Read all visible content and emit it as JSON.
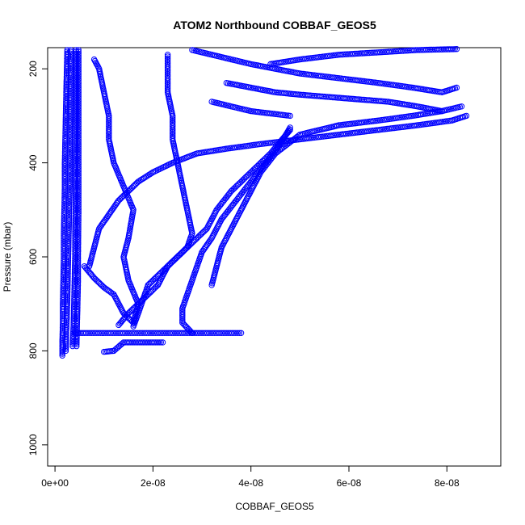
{
  "chart_data": {
    "type": "scatter",
    "title": "ATOM2 Northbound COBBAF_GEOS5",
    "xlabel": "COBBAF_GEOS5",
    "ylabel": "Pressure (mbar)",
    "xlim": [
      -1.5e-09,
      9.1e-08
    ],
    "ylim": [
      1045,
      155
    ],
    "y_reversed": true,
    "x_ticks": [
      {
        "value": 0,
        "label": "0e+00"
      },
      {
        "value": 2e-08,
        "label": "2e-08"
      },
      {
        "value": 4e-08,
        "label": "4e-08"
      },
      {
        "value": 6e-08,
        "label": "6e-08"
      },
      {
        "value": 8e-08,
        "label": "8e-08"
      }
    ],
    "y_ticks": [
      {
        "value": 200,
        "label": "200"
      },
      {
        "value": 400,
        "label": "400"
      },
      {
        "value": 600,
        "label": "600"
      },
      {
        "value": 800,
        "label": "800"
      },
      {
        "value": 1000,
        "label": "1000"
      }
    ],
    "grid": false,
    "legend": "none",
    "marker": "open-circle",
    "line_style": "dashed",
    "color": "#0000ff",
    "series": [
      {
        "x": [
          1.5e-09,
          1.5e-09,
          1.6e-09,
          1.6e-09,
          1.7e-09,
          1.8e-09,
          1.8e-09,
          1.9e-09,
          2e-09,
          2e-09,
          2.1e-09,
          2.2e-09,
          2.3e-09,
          2.5e-09
        ],
        "y": [
          810,
          780,
          740,
          700,
          650,
          600,
          550,
          500,
          450,
          400,
          350,
          300,
          250,
          160
        ]
      },
      {
        "x": [
          2.2e-09,
          2.3e-09,
          2.5e-09,
          2.6e-09,
          2.7e-09,
          2.8e-09,
          2.9e-09,
          3e-09,
          3e-09,
          3.1e-09,
          3.2e-09
        ],
        "y": [
          800,
          760,
          700,
          650,
          600,
          550,
          500,
          450,
          400,
          300,
          160
        ]
      },
      {
        "x": [
          3.6e-09,
          3.8e-09,
          3.9e-09,
          4e-09,
          4.1e-09,
          4.1e-09,
          4.2e-09,
          4.2e-09,
          4.3e-09,
          4.3e-09
        ],
        "y": [
          790,
          740,
          700,
          650,
          600,
          550,
          500,
          400,
          300,
          160
        ]
      },
      {
        "x": [
          4.4e-09,
          4.5e-09,
          4.6e-09,
          4.7e-09,
          4.7e-09,
          4.8e-09,
          4.8e-09,
          4.8e-09,
          4.8e-09
        ],
        "y": [
          790,
          740,
          700,
          650,
          600,
          500,
          400,
          300,
          160
        ]
      },
      {
        "x": [
          3.8e-08,
          3e-08,
          2.2e-08,
          1.5e-08,
          1e-08,
          6e-09,
          4e-09
        ],
        "y": [
          762,
          762,
          762,
          762,
          762,
          762,
          762
        ]
      },
      {
        "x": [
          2.2e-08,
          1.8e-08,
          1.4e-08,
          1.2e-08,
          1e-08
        ],
        "y": [
          782,
          782,
          782,
          800,
          802
        ]
      },
      {
        "x": [
          6e-09,
          8e-09,
          1e-08,
          1.2e-08,
          1.3e-08,
          1.4e-08,
          1.6e-08,
          1.7e-08,
          1.5e-08,
          1.4e-08,
          1.5e-08,
          1.6e-08,
          1.4e-08,
          1.2e-08,
          1.1e-08,
          1.1e-08,
          1e-08,
          9e-09,
          8e-09
        ],
        "y": [
          620,
          645,
          665,
          680,
          700,
          720,
          740,
          700,
          650,
          600,
          560,
          500,
          450,
          400,
          350,
          300,
          250,
          200,
          180
        ]
      },
      {
        "x": [
          1.3e-08,
          1.5e-08,
          1.7e-08,
          1.9e-08,
          2.1e-08,
          2.2e-08,
          2.3e-08,
          2.5e-08,
          2.7e-08,
          2.8e-08,
          2.7e-08,
          2.6e-08,
          2.5e-08,
          2.4e-08,
          2.4e-08,
          2.3e-08,
          2.3e-08
        ],
        "y": [
          745,
          720,
          700,
          680,
          660,
          640,
          620,
          600,
          580,
          550,
          500,
          450,
          400,
          350,
          300,
          250,
          170
        ]
      },
      {
        "x": [
          1.6e-08,
          1.7e-08,
          1.8e-08,
          1.9e-08,
          2.1e-08,
          2.3e-08,
          2.5e-08,
          2.7e-08,
          2.9e-08,
          3.1e-08,
          3.3e-08,
          3.6e-08,
          4e-08,
          4.4e-08,
          4.8e-08
        ],
        "y": [
          748,
          720,
          690,
          660,
          640,
          620,
          600,
          580,
          560,
          540,
          500,
          460,
          420,
          380,
          330
        ]
      },
      {
        "x": [
          2.8e-08,
          2.6e-08,
          2.6e-08,
          2.7e-08,
          2.8e-08,
          2.9e-08,
          3e-08,
          3.2e-08,
          3.4e-08,
          3.7e-08,
          4e-08,
          4.3e-08,
          4.6e-08,
          4.8e-08
        ],
        "y": [
          762,
          740,
          710,
          680,
          650,
          620,
          590,
          560,
          520,
          480,
          440,
          400,
          360,
          325
        ]
      },
      {
        "x": [
          3.2e-08,
          3.3e-08,
          3.4e-08,
          3.6e-08,
          3.8e-08,
          4e-08,
          4.2e-08,
          4.5e-08,
          5e-08,
          5.8e-08,
          6.6e-08,
          7.3e-08,
          7.9e-08,
          8.3e-08
        ],
        "y": [
          660,
          620,
          580,
          540,
          500,
          460,
          420,
          380,
          340,
          320,
          310,
          300,
          290,
          280
        ]
      },
      {
        "x": [
          7e-09,
          8e-09,
          9e-09,
          1.1e-08,
          1.3e-08,
          1.5e-08,
          1.7e-08,
          2e-08,
          2.4e-08,
          2.9e-08,
          3.5e-08,
          4.2e-08,
          5e-08,
          5.8e-08,
          6.6e-08,
          7.4e-08,
          8.1e-08,
          8.4e-08
        ],
        "y": [
          620,
          580,
          540,
          510,
          480,
          460,
          440,
          420,
          400,
          380,
          370,
          360,
          350,
          340,
          330,
          320,
          310,
          300
        ]
      },
      {
        "x": [
          2.8e-08,
          3.2e-08,
          3.6e-08,
          4e-08,
          4.5e-08,
          5e-08,
          5.8e-08,
          6.6e-08,
          7.3e-08,
          7.9e-08,
          8.2e-08
        ],
        "y": [
          160,
          170,
          180,
          190,
          200,
          210,
          220,
          230,
          240,
          250,
          240
        ]
      },
      {
        "x": [
          4.4e-08,
          5e-08,
          5.8e-08,
          6.6e-08,
          7.4e-08,
          8.2e-08
        ],
        "y": [
          190,
          180,
          170,
          165,
          160,
          158
        ]
      },
      {
        "x": [
          3.5e-08,
          4e-08,
          4.5e-08,
          5e-08,
          5.6e-08,
          6.2e-08,
          6.8e-08,
          7.4e-08,
          7.9e-08
        ],
        "y": [
          230,
          240,
          250,
          255,
          260,
          265,
          270,
          280,
          290
        ]
      },
      {
        "x": [
          3.2e-08,
          3.6e-08,
          4e-08,
          4.4e-08,
          4.8e-08
        ],
        "y": [
          270,
          280,
          290,
          295,
          300
        ]
      }
    ]
  }
}
